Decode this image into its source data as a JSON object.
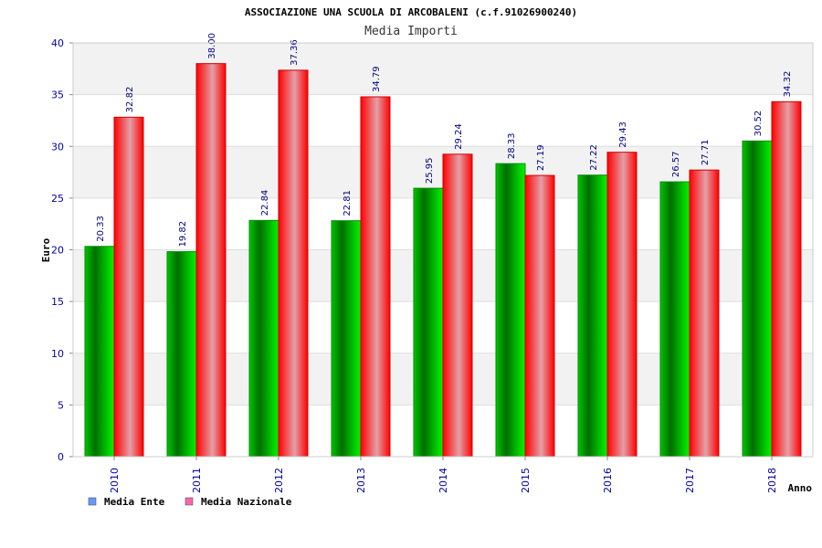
{
  "chart_data": {
    "type": "bar",
    "title": "ASSOCIAZIONE UNA SCUOLA DI ARCOBALENI (c.f.91026900240)",
    "subtitle": "Media Importi",
    "xlabel": "Anno",
    "ylabel": "Euro",
    "ylim": [
      0,
      40
    ],
    "yticks": [
      0,
      5,
      10,
      15,
      20,
      25,
      30,
      35,
      40
    ],
    "grid": true,
    "legend_position": "bottom-left",
    "categories": [
      "2010",
      "2011",
      "2012",
      "2013",
      "2014",
      "2015",
      "2016",
      "2017",
      "2018"
    ],
    "series": [
      {
        "name": "Media Ente",
        "values": [
          20.33,
          19.82,
          22.84,
          22.81,
          25.95,
          28.33,
          27.22,
          26.57,
          30.52
        ],
        "labels": [
          "20.33",
          "19.82",
          "22.84",
          "22.81",
          "25.95",
          "28.33",
          "27.22",
          "26.57",
          "30.52"
        ]
      },
      {
        "name": "Media Nazionale",
        "values": [
          32.82,
          38.0,
          37.36,
          34.79,
          29.24,
          27.19,
          29.43,
          27.71,
          34.32
        ],
        "labels": [
          "32.82",
          "38.00",
          "37.36",
          "34.79",
          "29.24",
          "27.19",
          "29.43",
          "27.71",
          "34.32"
        ]
      }
    ],
    "colors": {
      "ente_bar": "#00c000",
      "nazionale_bar": "#ff0000",
      "ente_legend": "#6699ff",
      "nazionale_legend": "#ff66aa",
      "band": "#f2f2f2",
      "tick_text": "#0000a0"
    }
  }
}
